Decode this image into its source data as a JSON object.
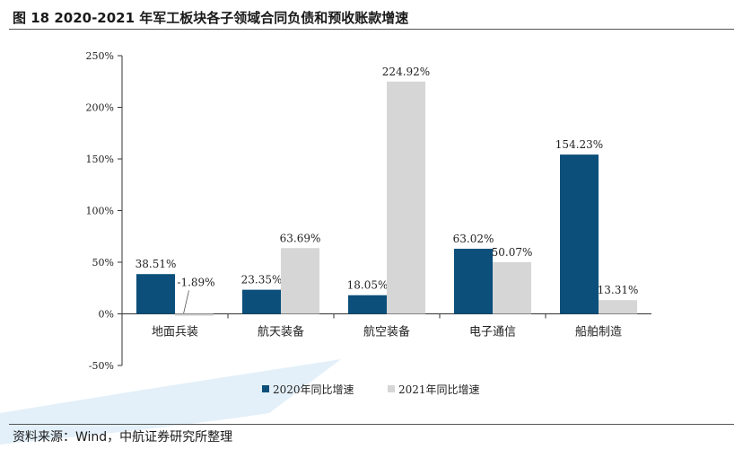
{
  "figure": {
    "title": "图 18 2020-2021 年军工板块各子领域合同负债和预收账款增速",
    "source": "资料来源：Wind，中航证券研究所整理"
  },
  "colors": {
    "series_2020": "#0b4f7a",
    "series_2021": "#d6d6d6",
    "axis": "#333333",
    "watermark": "#cfe6f5"
  },
  "chart_data": {
    "type": "bar",
    "categories": [
      "地面兵装",
      "航天装备",
      "航空装备",
      "电子通信",
      "船舶制造"
    ],
    "series": [
      {
        "name": "2020年同比增速",
        "values": [
          38.51,
          23.35,
          18.05,
          63.02,
          154.23
        ],
        "labels": [
          "38.51%",
          "23.35%",
          "18.05%",
          "63.02%",
          "154.23%"
        ]
      },
      {
        "name": "2021年同比增速",
        "values": [
          -1.89,
          63.69,
          224.92,
          50.07,
          13.31
        ],
        "labels": [
          "-1.89%",
          "63.69%",
          "224.92%",
          "50.07%",
          "13.31%"
        ]
      }
    ],
    "y_ticks": [
      250,
      200,
      150,
      100,
      50,
      0,
      -50
    ],
    "y_tick_labels": [
      "250%",
      "200%",
      "150%",
      "100%",
      "50%",
      "0%",
      "-50%"
    ],
    "ylim": [
      -50,
      250
    ],
    "grid": false,
    "legend_position": "bottom"
  }
}
